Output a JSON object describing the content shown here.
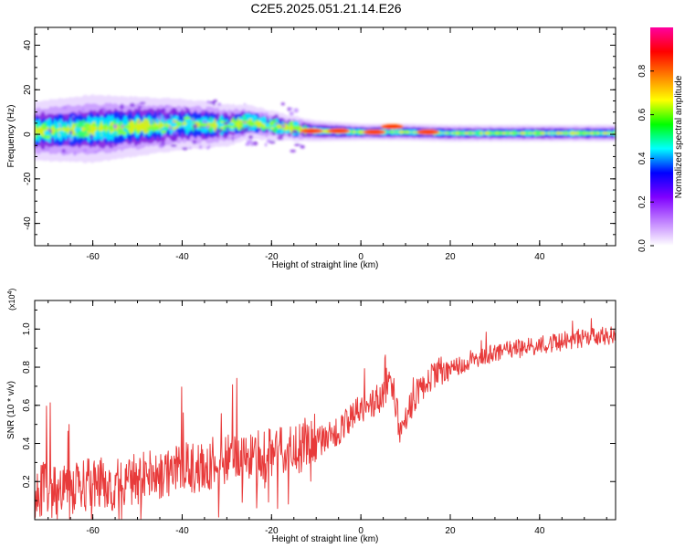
{
  "title": "C2E5.2025.051.21.14.E26",
  "chart_data": [
    {
      "type": "heatmap",
      "xlabel": "Height of straight line (km)",
      "ylabel": "Frequency (Hz)",
      "xlim": [
        -73,
        57
      ],
      "ylim": [
        -50,
        48
      ],
      "xticks": [
        -60,
        -40,
        -20,
        0,
        20,
        40
      ],
      "yticks": [
        -40,
        -20,
        0,
        20,
        40
      ],
      "colorbar": {
        "label": "Normalized spectral amplitude",
        "lim": [
          0,
          1
        ],
        "ticks": [
          "0.0",
          "0.2",
          "0.4",
          "0.6",
          "0.8"
        ],
        "colors": [
          "#ffffff",
          "#c080ff",
          "#8000ff",
          "#0000ff",
          "#00ffff",
          "#00ff00",
          "#ffff00",
          "#ff8000",
          "#ff0000",
          "#ff00a0"
        ]
      },
      "band": {
        "x": [
          -73,
          -60,
          -50,
          -40,
          -30,
          -25,
          -20,
          -15,
          -10,
          0,
          10,
          20,
          30,
          40,
          50,
          57
        ],
        "center_hz": [
          1.5,
          2.5,
          3.5,
          4.5,
          4.0,
          5.5,
          4.0,
          2.5,
          1.5,
          1.0,
          1.0,
          0.5,
          0.5,
          0.5,
          0.5,
          0.5
        ],
        "halfwidth_hz": [
          7,
          8,
          7,
          6,
          5,
          4,
          3.5,
          3,
          2.5,
          2,
          2,
          2,
          2,
          2,
          2,
          2
        ],
        "peak_x": [
          -11,
          -5,
          3,
          7,
          15
        ],
        "peak_freq": [
          1.5,
          1.5,
          1.0,
          3.5,
          1.0
        ]
      }
    },
    {
      "type": "line",
      "xlabel": "Height of straight line (km)",
      "ylabel": "SNR (10 * v/v)",
      "y_multiplier": "(x10^4)",
      "xlim": [
        -73,
        57
      ],
      "ylim": [
        0,
        1.15
      ],
      "xticks": [
        -60,
        -40,
        -20,
        0,
        20,
        40
      ],
      "yticks": [
        "0.2",
        "0.4",
        "0.6",
        "0.8",
        "1.0"
      ],
      "color": "#e83b3b",
      "x": [
        -73,
        -70,
        -65,
        -60,
        -55,
        -50,
        -45,
        -40,
        -35,
        -30,
        -25,
        -20,
        -17,
        -15,
        -10,
        -5,
        -3,
        0,
        3,
        5,
        7,
        8,
        9,
        10,
        12,
        15,
        20,
        25,
        30,
        35,
        40,
        45,
        50,
        55,
        57
      ],
      "y": [
        0.1,
        0.13,
        0.12,
        0.15,
        0.14,
        0.17,
        0.2,
        0.22,
        0.24,
        0.27,
        0.28,
        0.3,
        0.34,
        0.33,
        0.38,
        0.43,
        0.5,
        0.55,
        0.6,
        0.63,
        0.7,
        0.55,
        0.4,
        0.5,
        0.62,
        0.72,
        0.77,
        0.83,
        0.86,
        0.88,
        0.9,
        0.92,
        0.94,
        0.95,
        0.95
      ]
    }
  ]
}
